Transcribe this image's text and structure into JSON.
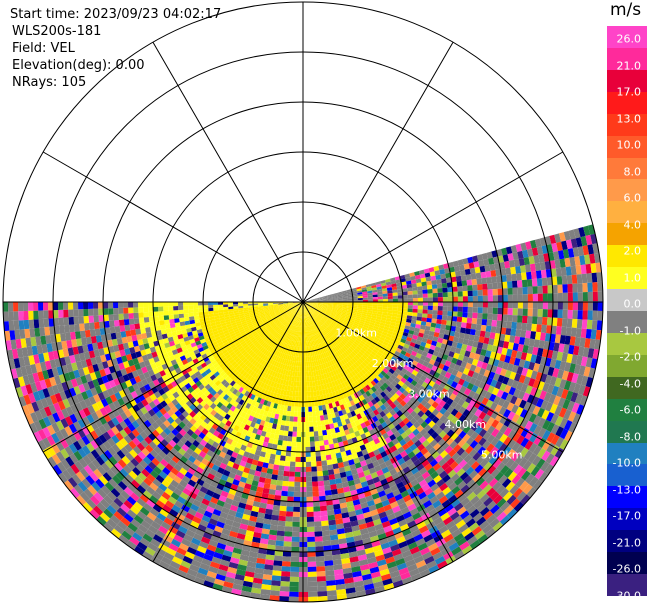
{
  "header": {
    "start_time": "Start time: 2023/09/23 04:02:17",
    "instrument": "WLS200s-181",
    "field": "Field: VEL",
    "elevation": "Elevation(deg): 0.00",
    "nrays": "NRays: 105"
  },
  "range_labels": [
    "1.00km",
    "2.00km",
    "3.00km",
    "4.00km",
    "5.00km"
  ],
  "colorbar": {
    "unit": "m/s",
    "ticks": [
      "26.0",
      "21.0",
      "17.0",
      "13.0",
      "10.0",
      "8.0",
      "6.0",
      "4.0",
      "2.0",
      "1.0",
      "0.0",
      "-1.0",
      "-2.0",
      "-4.0",
      "-6.0",
      "-8.0",
      "-10.0",
      "-13.0",
      "-17.0",
      "-21.0",
      "-26.0",
      "-30.0"
    ],
    "colors": [
      "#ff44c8",
      "#ff2a9b",
      "#e8003a",
      "#ff1a1a",
      "#ff3a1a",
      "#ff5a2a",
      "#ff7a3a",
      "#ff9a4a",
      "#ffb040",
      "#f5a300",
      "#ffe800",
      "#ffff20",
      "#c8c8c8",
      "#808080",
      "#a8c840",
      "#80a830",
      "#406820",
      "#208040",
      "#207850",
      "#2080c0",
      "#1860d0",
      "#0000ff",
      "#0000c0",
      "#000080",
      "#000050",
      "#3a2080"
    ]
  },
  "map_data": {
    "type": "radar-ppi",
    "max_range_km": 6,
    "ring_count": 6,
    "spoke_step_deg": 30,
    "sector_deg": [
      -15,
      180
    ]
  }
}
